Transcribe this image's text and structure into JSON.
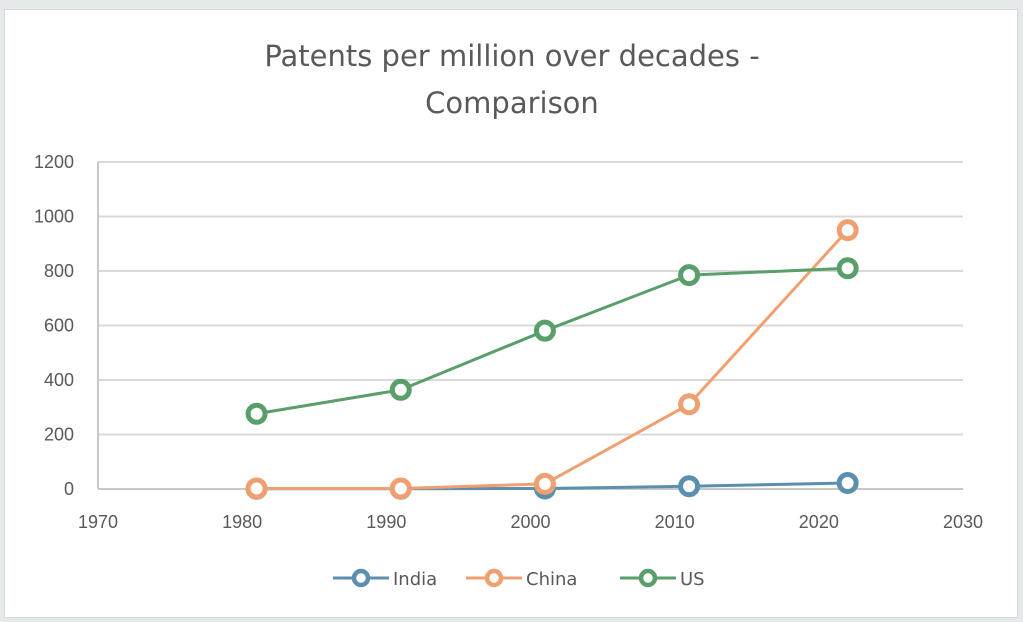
{
  "chart_data": {
    "type": "line",
    "title": "Patents per million over decades - Comparison",
    "title_lines": [
      "Patents per million over decades -",
      "Comparison"
    ],
    "xlabel": "",
    "ylabel": "",
    "xlim": [
      1970,
      2030
    ],
    "ylim": [
      0,
      1200
    ],
    "x_ticks": [
      1970,
      1980,
      1990,
      2000,
      2010,
      2020,
      2030
    ],
    "y_ticks": [
      0,
      200,
      400,
      600,
      800,
      1000,
      1200
    ],
    "grid": "horizontal",
    "legend_position": "bottom",
    "series": [
      {
        "name": "India",
        "color": "#5b8fad",
        "x": [
          1981,
          1991,
          2001,
          2011,
          2022
        ],
        "values": [
          1,
          1,
          2,
          10,
          22
        ]
      },
      {
        "name": "China",
        "color": "#f0a070",
        "x": [
          1981,
          1991,
          2001,
          2011,
          2022
        ],
        "values": [
          2,
          2,
          19,
          311,
          950
        ]
      },
      {
        "name": "US",
        "color": "#5a9e6a",
        "x": [
          1981,
          1991,
          2001,
          2011,
          2022
        ],
        "values": [
          276,
          364,
          581,
          785,
          810
        ]
      }
    ]
  }
}
